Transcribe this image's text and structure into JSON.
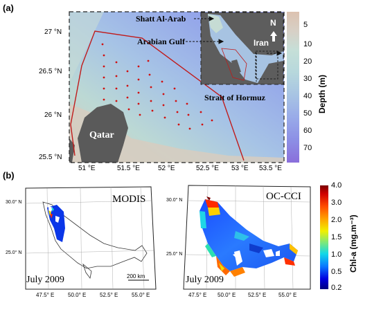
{
  "panel_a": {
    "label": "(a)",
    "lat_labels": [
      "27 °N",
      "26.5 °N",
      "26 °N",
      "25.5 °N"
    ],
    "lon_labels": [
      "51 °E",
      "51.5 °E",
      "52 °E",
      "52.5 °E",
      "53 °E",
      "53.5 °E"
    ],
    "place_labels": {
      "qatar": "Qatar",
      "shatt": "Shatt Al-Arab",
      "gulf": "Arabian Gulf",
      "iran": "Iran",
      "hormuz": "Strait of Hormuz",
      "north": "N"
    },
    "colorbar": {
      "title": "Depth (m)",
      "ticks": [
        "5",
        "10",
        "20",
        "30",
        "40",
        "50",
        "60",
        "70"
      ],
      "colors": [
        "#d9c3b3",
        "#d6cfc6",
        "#c7ded8",
        "#b8d8d8",
        "#a9c6e2",
        "#9cb3ea",
        "#8f9de9",
        "#8a84e3",
        "#8b72dc"
      ]
    },
    "colors": {
      "boundary": "#c01b1b",
      "station": "#d01010",
      "land": "#5a5a5a"
    }
  },
  "panel_b": {
    "label": "(b)",
    "left": {
      "sensor": "MODIS",
      "date": "July 2009",
      "lat_labels": [
        "30.0° N",
        "25.0° N"
      ],
      "lon_labels": [
        "47.5° E",
        "50.0° E",
        "52.5° E",
        "55.0° E"
      ],
      "scale": "200 km"
    },
    "right": {
      "sensor": "OC-CCI",
      "date": "July 2009",
      "lat_labels": [
        "30.0° N",
        "25.0° N"
      ],
      "lon_labels": [
        "47.5° E",
        "50.0° E",
        "52.5° E",
        "55.0° E"
      ]
    },
    "colorbar": {
      "title": "Chl-a (mg.m⁻³)",
      "ticks": [
        "4.0",
        "3.0",
        "2.0",
        "1.5",
        "1.0",
        "0.5",
        "0.2"
      ]
    }
  }
}
